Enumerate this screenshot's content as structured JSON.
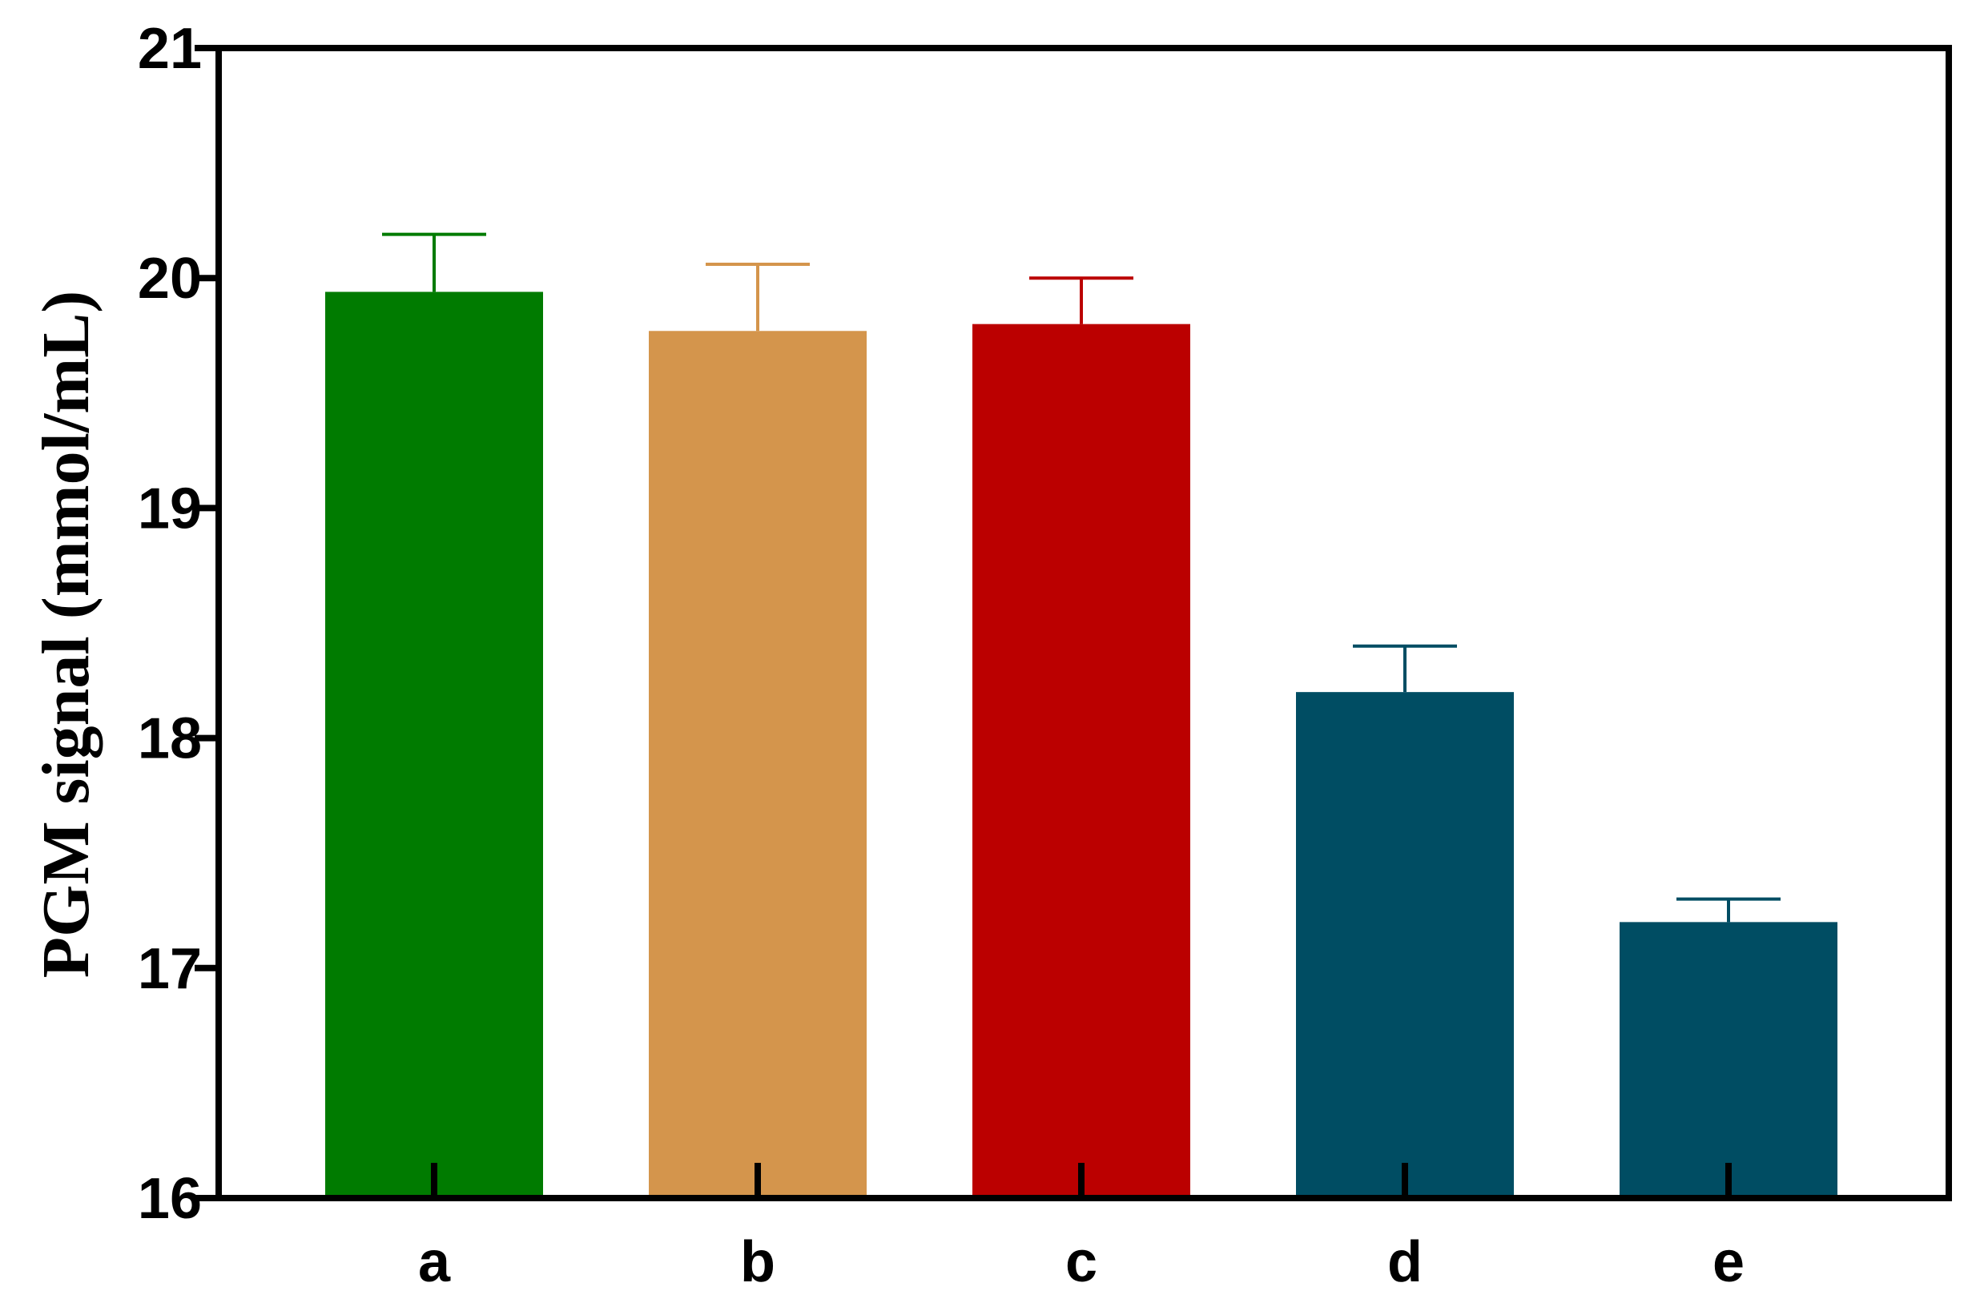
{
  "chart_data": {
    "type": "bar",
    "title": "",
    "xlabel": "",
    "ylabel": "PGM signal (mmol/mL)",
    "categories": [
      "a",
      "b",
      "c",
      "d",
      "e"
    ],
    "values": [
      19.94,
      19.77,
      19.8,
      18.2,
      17.2
    ],
    "errors": [
      0.25,
      0.29,
      0.2,
      0.2,
      0.1
    ],
    "colors": [
      "#007b00",
      "#d4954c",
      "#bb0000",
      "#004d63",
      "#004d63"
    ],
    "ylim": [
      16,
      21
    ],
    "yticks": [
      "16",
      "17",
      "18",
      "19",
      "20",
      "21"
    ],
    "grid": false,
    "legend": "none"
  }
}
